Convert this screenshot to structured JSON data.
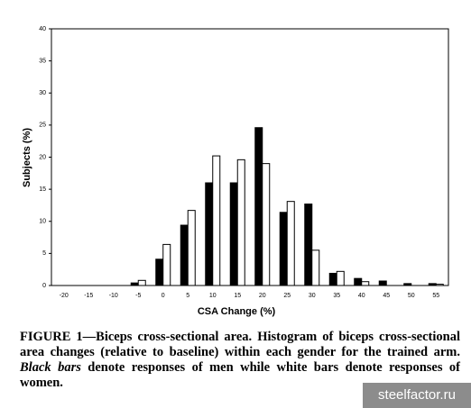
{
  "chart_data": {
    "type": "bar",
    "categories": [
      "-20",
      "-15",
      "-10",
      "-5",
      "0",
      "5",
      "10",
      "15",
      "20",
      "25",
      "30",
      "35",
      "40",
      "45",
      "50",
      "55"
    ],
    "series": [
      {
        "color": "#000000",
        "values": [
          0,
          0,
          0,
          0.4,
          4.1,
          9.4,
          16.0,
          16.0,
          24.6,
          11.4,
          12.7,
          1.9,
          1.1,
          0.7,
          0.3,
          0.3
        ]
      },
      {
        "color": "#ffffff",
        "values": [
          0,
          0,
          0,
          0.8,
          6.4,
          11.7,
          20.2,
          19.6,
          19.0,
          13.1,
          5.5,
          2.2,
          0.6,
          0,
          0,
          0.2
        ]
      }
    ],
    "xlabel": "CSA Change (%)",
    "ylabel": "Subjects (%)",
    "ylim": [
      0,
      40
    ],
    "yticks": [
      0,
      5,
      10,
      15,
      20,
      25,
      30,
      35,
      40
    ],
    "grid": false
  },
  "caption": [
    "FIGURE 1—Biceps cross-sectional area. Histogram of biceps cross-sectional area changes (relative to baseline) within each gender for the trained arm. ",
    "Black bars",
    " denote responses of men while white bars denote responses of women."
  ],
  "watermark": "steelfactor.ru"
}
